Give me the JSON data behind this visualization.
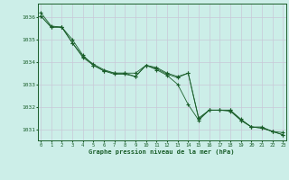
{
  "title": "Graphe pression niveau de la mer (hPa)",
  "bg_color": "#cceee8",
  "plot_bg_color": "#cceee8",
  "grid_color": "#c8c8d8",
  "line_color": "#1a5e2a",
  "marker_color": "#1a5e2a",
  "label_color": "#1a5e2a",
  "x_hours": [
    0,
    1,
    2,
    3,
    4,
    5,
    6,
    7,
    8,
    9,
    10,
    11,
    12,
    13,
    14,
    15,
    16,
    17,
    18,
    19,
    20,
    21,
    22,
    23
  ],
  "series1": [
    1036.2,
    1035.6,
    1035.55,
    1035.0,
    1034.3,
    1033.85,
    1033.6,
    1033.5,
    1033.5,
    1033.35,
    1033.85,
    1033.75,
    1033.5,
    1033.35,
    1033.5,
    1031.5,
    1031.85,
    1031.85,
    1031.85,
    1031.45,
    1031.1,
    1031.1,
    1030.9,
    1030.85
  ],
  "series2": [
    1036.05,
    1035.55,
    1035.55,
    1034.85,
    1034.25,
    1033.9,
    1033.65,
    1033.5,
    1033.5,
    1033.5,
    1033.85,
    1033.7,
    1033.45,
    1033.3,
    1033.5,
    1031.45,
    1031.85,
    1031.85,
    1031.85,
    1031.4,
    1031.1,
    1031.05,
    1030.9,
    1030.75
  ],
  "series3": [
    1036.05,
    1035.55,
    1035.55,
    1034.85,
    1034.2,
    1033.85,
    1033.6,
    1033.45,
    1033.45,
    1033.35,
    1033.85,
    1033.65,
    1033.4,
    1033.0,
    1032.1,
    1031.4,
    1031.85,
    1031.85,
    1031.8,
    1031.4,
    1031.1,
    1031.05,
    1030.9,
    1030.75
  ],
  "ylim": [
    1030.5,
    1036.6
  ],
  "yticks": [
    1031,
    1032,
    1033,
    1034,
    1035,
    1036
  ],
  "xlim": [
    -0.3,
    23.3
  ]
}
